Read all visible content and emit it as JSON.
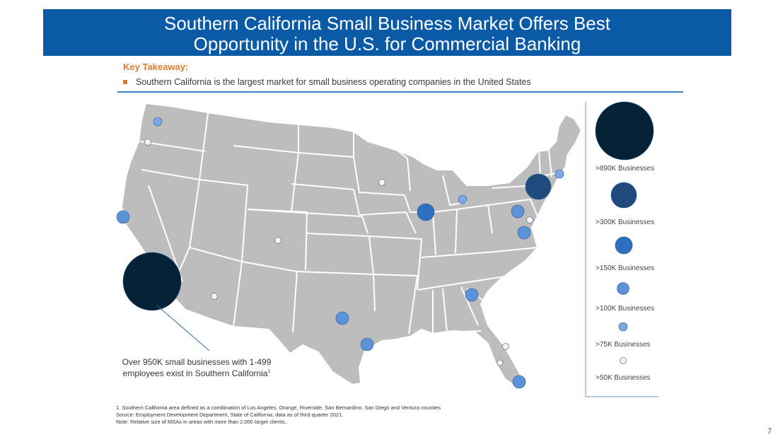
{
  "title": {
    "line1": "Southern California Small Business Market Offers Best",
    "line2": "Opportunity in the U.S. for Commercial Banking"
  },
  "key_takeaway": {
    "heading": "Key Takeaway:",
    "bullet": "Southern California is the largest market for small  business operating companies in the United States"
  },
  "legend": {
    "tiers": [
      {
        "label": ">890K Businesses",
        "color": "#062236"
      },
      {
        "label": ">300K Businesses",
        "color": "#1f4a7d"
      },
      {
        "label": ">150K Businesses",
        "color": "#2f6fc0"
      },
      {
        "label": ">100K Businesses",
        "color": "#5c93d8"
      },
      {
        "label": ">75K Businesses",
        "color": "#7da9e0"
      },
      {
        "label": ">50K Businesses",
        "color": "#f2f5f8"
      }
    ]
  },
  "markers": [
    {
      "tier": 0
    },
    {
      "tier": 1
    },
    {
      "tier": 2
    },
    {
      "tier": 2
    },
    {
      "tier": 3
    },
    {
      "tier": 3
    },
    {
      "tier": 3
    },
    {
      "tier": 3
    },
    {
      "tier": 3
    },
    {
      "tier": 3
    },
    {
      "tier": 3
    },
    {
      "tier": 4
    },
    {
      "tier": 4
    },
    {
      "tier": 4
    },
    {
      "tier": 5
    },
    {
      "tier": 5
    },
    {
      "tier": 5
    },
    {
      "tier": 5
    },
    {
      "tier": 5
    },
    {
      "tier": 5
    }
  ],
  "callout": {
    "line1": "Over 950K small businesses with 1-499",
    "line2": "employees exist in Southern California",
    "sup": "1"
  },
  "footnotes": {
    "note1": "1. Southern California area defined as a combination of Los Angeles, Orange, Riverside, San Bernardino,  San Diego and Ventura counties",
    "source": "Source: Employment Development Department, State of California; data as of third quarter 2021.",
    "note": "Note: Relative size of MSAs in areas with more than 2,000 target clients.."
  },
  "page_number": "7"
}
